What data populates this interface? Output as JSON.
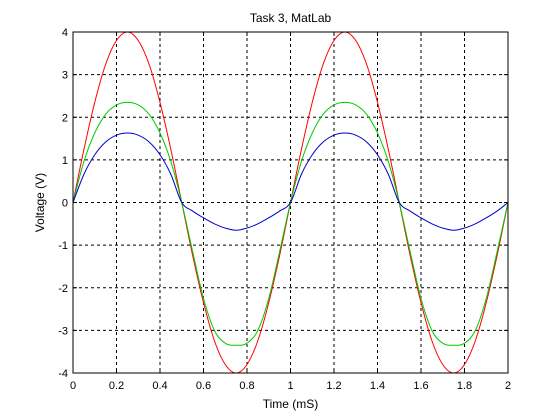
{
  "chart_data": {
    "type": "line",
    "title": "Task 3, MatLab",
    "xlabel": "Time (mS)",
    "ylabel": "Voltage (V)",
    "xlim": [
      0,
      2
    ],
    "ylim": [
      -4,
      4
    ],
    "grid": true,
    "x_ticks": [
      "0",
      "0.2",
      "0.4",
      "0.6",
      "0.8",
      "1",
      "1.2",
      "1.4",
      "1.6",
      "1.8",
      "2"
    ],
    "y_ticks": [
      "-4",
      "-3",
      "-2",
      "-1",
      "0",
      "1",
      "2",
      "3",
      "4"
    ],
    "x": [
      0,
      0.05,
      0.1,
      0.15,
      0.2,
      0.25,
      0.3,
      0.35,
      0.4,
      0.45,
      0.5,
      0.55,
      0.6,
      0.65,
      0.7,
      0.75,
      0.8,
      0.85,
      0.9,
      0.95,
      1.0,
      1.05,
      1.1,
      1.15,
      1.2,
      1.25,
      1.3,
      1.35,
      1.4,
      1.45,
      1.5,
      1.55,
      1.6,
      1.65,
      1.7,
      1.75,
      1.8,
      1.85,
      1.9,
      1.95,
      2.0
    ],
    "series": [
      {
        "color": "#ff0000",
        "values": [
          0,
          1.24,
          2.35,
          3.24,
          3.8,
          4.0,
          3.8,
          3.24,
          2.35,
          1.24,
          0,
          -1.24,
          -2.35,
          -3.24,
          -3.8,
          -4.0,
          -3.8,
          -3.24,
          -2.35,
          -1.24,
          0,
          1.24,
          2.35,
          3.24,
          3.8,
          4.0,
          3.8,
          3.24,
          2.35,
          1.24,
          0,
          -1.24,
          -2.35,
          -3.24,
          -3.8,
          -4.0,
          -3.8,
          -3.24,
          -2.35,
          -1.24,
          0
        ]
      },
      {
        "color": "#00cc00",
        "values": [
          0,
          0.96,
          1.63,
          2.07,
          2.29,
          2.35,
          2.29,
          2.07,
          1.63,
          0.96,
          0,
          -1.15,
          -2.25,
          -3.0,
          -3.3,
          -3.35,
          -3.3,
          -3.0,
          -2.25,
          -1.15,
          0,
          0.96,
          1.63,
          2.07,
          2.29,
          2.35,
          2.29,
          2.07,
          1.63,
          0.96,
          0,
          -1.15,
          -2.25,
          -3.0,
          -3.3,
          -3.35,
          -3.3,
          -3.0,
          -2.25,
          -1.15,
          0
        ]
      },
      {
        "color": "#0000cc",
        "values": [
          0,
          0.66,
          1.12,
          1.42,
          1.58,
          1.63,
          1.58,
          1.42,
          1.12,
          0.66,
          0,
          -0.2,
          -0.36,
          -0.5,
          -0.6,
          -0.65,
          -0.6,
          -0.5,
          -0.36,
          -0.2,
          0,
          0.66,
          1.12,
          1.42,
          1.58,
          1.63,
          1.58,
          1.42,
          1.12,
          0.66,
          0,
          -0.2,
          -0.36,
          -0.5,
          -0.6,
          -0.65,
          -0.6,
          -0.5,
          -0.36,
          -0.2,
          0
        ]
      }
    ]
  }
}
